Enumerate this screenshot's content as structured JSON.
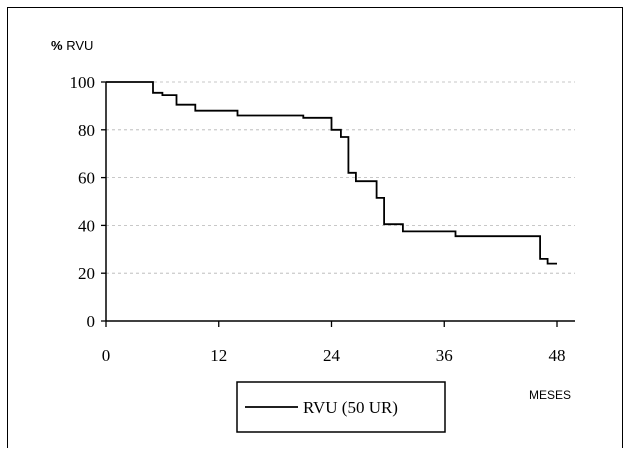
{
  "chart_data": {
    "type": "line",
    "step": true,
    "ylabel_symbol": "%",
    "ylabel_text": "RVU",
    "xlabel": "MESES",
    "xlim": [
      0,
      48
    ],
    "ylim": [
      0,
      100
    ],
    "xticks": [
      0,
      12,
      24,
      36,
      48
    ],
    "yticks": [
      0,
      20,
      40,
      60,
      80,
      100
    ],
    "grid": "horizontal dashed",
    "legend_position": "bottom-center",
    "series": [
      {
        "name": "RVU (50 UR)",
        "color": "#000000",
        "points": [
          [
            0,
            100
          ],
          [
            5,
            100
          ],
          [
            5,
            95.5
          ],
          [
            6,
            95.5
          ],
          [
            6,
            94.5
          ],
          [
            7.5,
            94.5
          ],
          [
            7.5,
            90.5
          ],
          [
            9.5,
            90.5
          ],
          [
            9.5,
            88
          ],
          [
            14,
            88
          ],
          [
            14,
            86
          ],
          [
            21,
            86
          ],
          [
            21,
            85
          ],
          [
            24,
            85
          ],
          [
            24,
            80
          ],
          [
            25,
            80
          ],
          [
            25,
            77
          ],
          [
            25.8,
            77
          ],
          [
            25.8,
            62
          ],
          [
            26.6,
            62
          ],
          [
            26.6,
            58.5
          ],
          [
            28.8,
            58.5
          ],
          [
            28.8,
            51.5
          ],
          [
            29.6,
            51.5
          ],
          [
            29.6,
            40.5
          ],
          [
            31.6,
            40.5
          ],
          [
            31.6,
            37.5
          ],
          [
            37.2,
            37.5
          ],
          [
            37.2,
            35.5
          ],
          [
            46.2,
            35.5
          ],
          [
            46.2,
            26
          ],
          [
            47,
            26
          ],
          [
            47,
            24
          ],
          [
            48,
            24
          ]
        ]
      }
    ]
  }
}
